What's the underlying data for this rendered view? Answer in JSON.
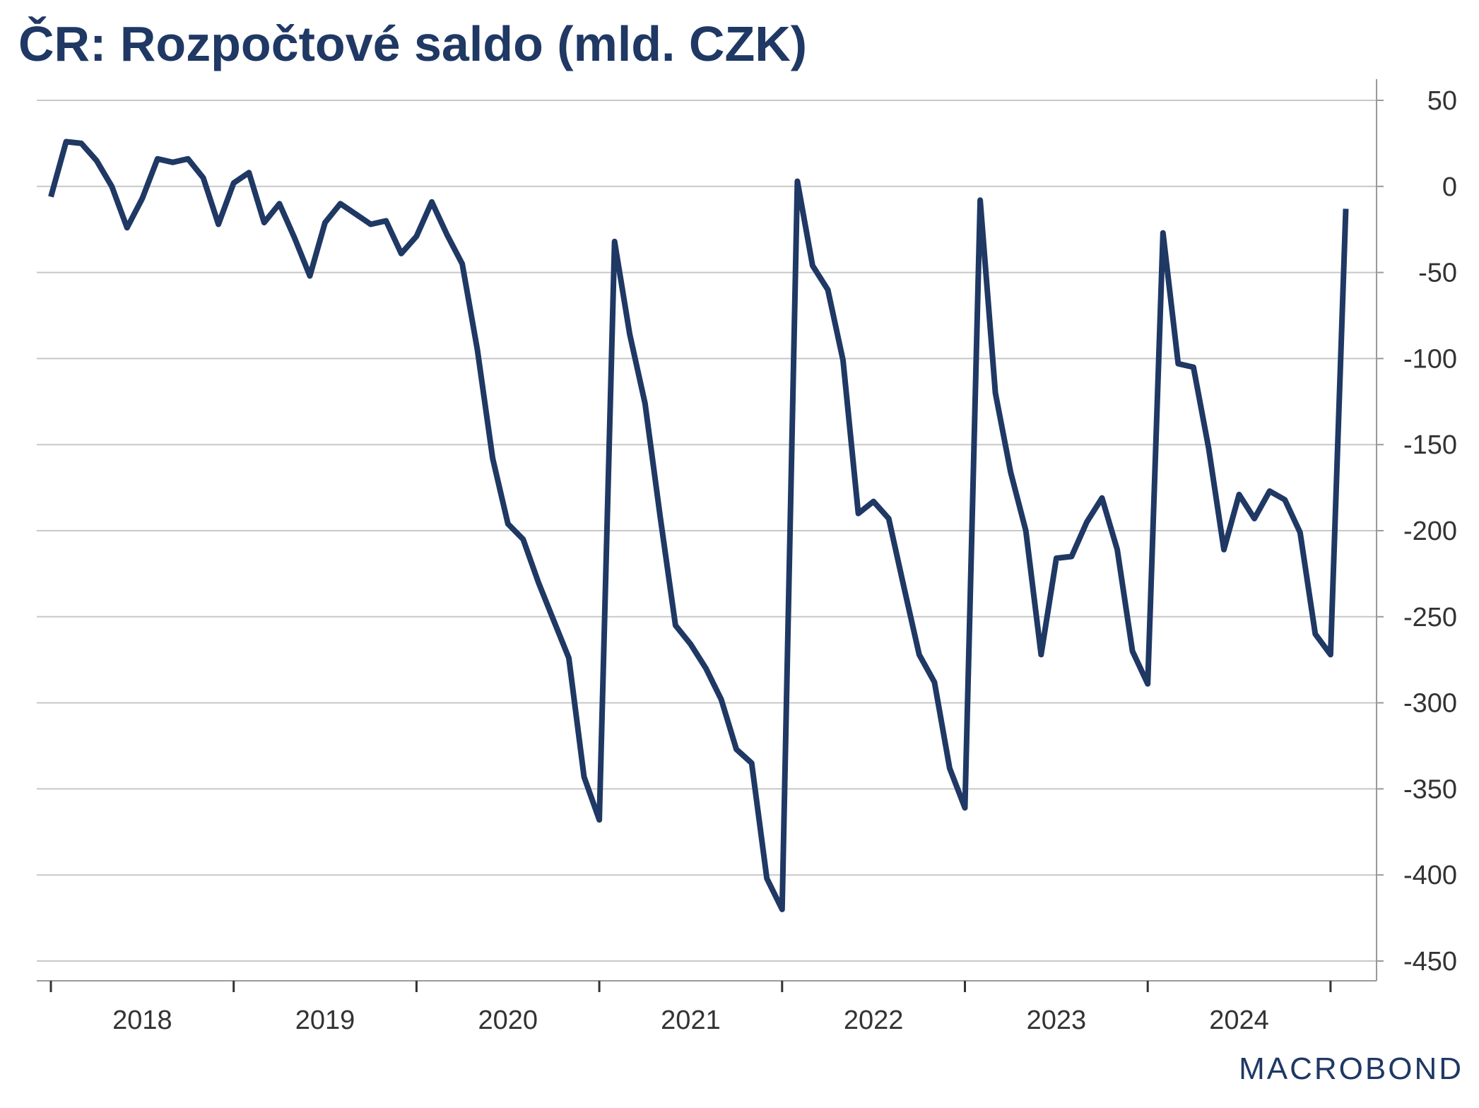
{
  "chart_data": {
    "type": "line",
    "title": "ČR: Rozpočtové saldo (mld. CZK)",
    "xlabel": "",
    "ylabel": "",
    "ylim": [
      -450,
      50
    ],
    "yticks": [
      50,
      0,
      -50,
      -100,
      -150,
      -200,
      -250,
      -300,
      -350,
      -400,
      -450
    ],
    "ytick_labels": [
      "50",
      "0",
      "-50",
      "-100",
      "-150",
      "-200",
      "-250",
      "-300",
      "-350",
      "-400",
      "-450"
    ],
    "x_year_labels": [
      "2018",
      "2019",
      "2020",
      "2021",
      "2022",
      "2023",
      "2024"
    ],
    "x_start_year": 2018,
    "grid": true,
    "y_axis_position": "right",
    "line_color": "#1f3864",
    "series": [
      {
        "name": "Rozpočtové saldo",
        "frequency": "monthly",
        "start": "2018-01",
        "values": [
          -6,
          26,
          25,
          15,
          0,
          -24,
          -7,
          16,
          14,
          16,
          5,
          -22,
          2,
          8,
          -21,
          -10,
          -30,
          -52,
          -21,
          -10,
          -16,
          -22,
          -20,
          -39,
          -29,
          -9,
          -28,
          -45,
          -95,
          -158,
          -196,
          -205,
          -230,
          -252,
          -274,
          -343,
          -368,
          -32,
          -86,
          -126,
          -192,
          -255,
          -266,
          -280,
          -298,
          -327,
          -335,
          -402,
          -420,
          3,
          -46,
          -60,
          -101,
          -190,
          -183,
          -193,
          -233,
          -272,
          -288,
          -338,
          -361,
          -8,
          -120,
          -166,
          -200,
          -272,
          -216,
          -215,
          -195,
          -181,
          -211,
          -270,
          -289,
          -27,
          -103,
          -105,
          -152,
          -211,
          -179,
          -193,
          -177,
          -182,
          -201,
          -260,
          -272,
          -13
        ]
      }
    ]
  },
  "branding": {
    "logo_text": "MACROBOND"
  }
}
